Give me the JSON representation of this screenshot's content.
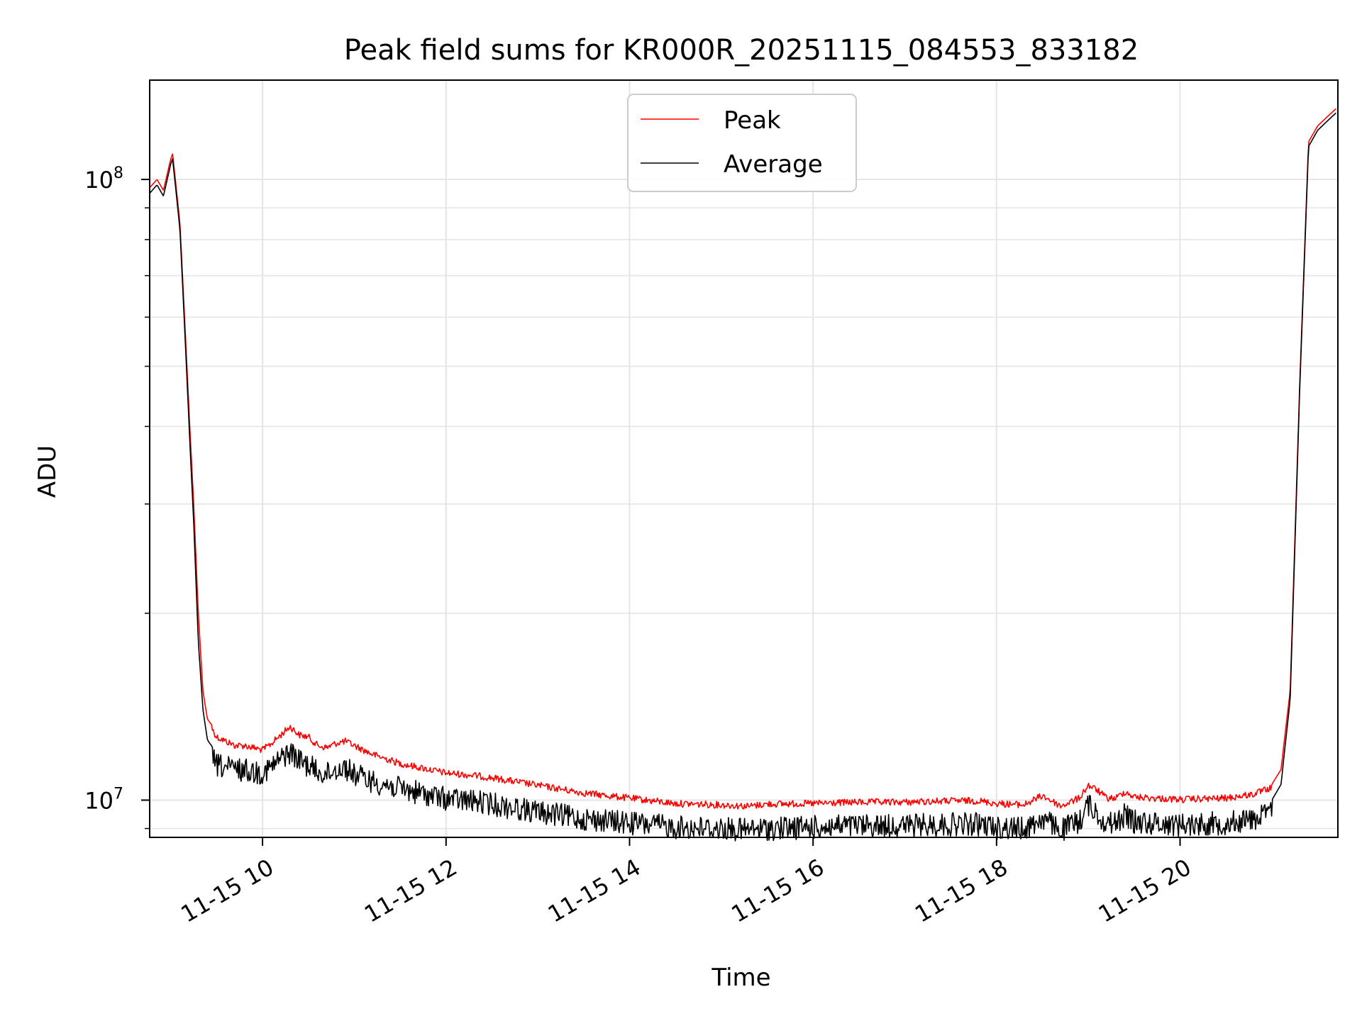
{
  "chart_data": {
    "type": "line",
    "title": "Peak field sums for KR000R_20251115_084553_833182",
    "xlabel": "Time",
    "ylabel": "ADU",
    "x_unit": "hours since 2025-11-15 00:00",
    "xlim": [
      8.77,
      21.72
    ],
    "ylim_log10": [
      6.94,
      8.16
    ],
    "yscale": "log",
    "grid": true,
    "legend_position": "top-center",
    "x_ticks": [
      {
        "value": 10,
        "label": "11-15 10"
      },
      {
        "value": 12,
        "label": "11-15 12"
      },
      {
        "value": 14,
        "label": "11-15 14"
      },
      {
        "value": 16,
        "label": "11-15 16"
      },
      {
        "value": 18,
        "label": "11-15 18"
      },
      {
        "value": 20,
        "label": "11-15 20"
      }
    ],
    "y_ticks": [
      {
        "value": 10000000,
        "base": "10",
        "exp": "7"
      },
      {
        "value": 100000000,
        "base": "10",
        "exp": "8"
      }
    ],
    "series": [
      {
        "name": "Peak",
        "color": "#ff0000",
        "x": [
          8.77,
          8.85,
          8.92,
          9.0,
          9.02,
          9.05,
          9.1,
          9.15,
          9.2,
          9.25,
          9.3,
          9.35,
          9.4,
          9.45,
          9.5,
          9.6,
          9.7,
          9.8,
          9.9,
          10.0,
          10.1,
          10.2,
          10.3,
          10.4,
          10.5,
          10.6,
          10.7,
          10.8,
          10.9,
          11.0,
          11.2,
          11.5,
          12.0,
          12.3,
          12.5,
          13.0,
          13.5,
          14.0,
          14.5,
          15.0,
          15.3,
          15.5,
          16.0,
          16.5,
          17.0,
          17.5,
          17.8,
          18.0,
          18.3,
          18.5,
          18.7,
          18.9,
          19.0,
          19.1,
          19.2,
          19.3,
          19.4,
          19.5,
          19.7,
          20.0,
          20.5,
          20.8,
          21.0,
          21.1,
          21.2,
          21.3,
          21.4,
          21.5,
          21.6,
          21.7
        ],
        "y": [
          97000000,
          100000000,
          96000000,
          108000000,
          110000000,
          100000000,
          85000000,
          60000000,
          42000000,
          30000000,
          20000000,
          15000000,
          13500000,
          13200000,
          12800000,
          12600000,
          12400000,
          12400000,
          12300000,
          12200000,
          12500000,
          12900000,
          13300000,
          12900000,
          12800000,
          12400000,
          12300000,
          12500000,
          12600000,
          12400000,
          12000000,
          11600000,
          11200000,
          11100000,
          11000000,
          10700000,
          10400000,
          10200000,
          10000000,
          9950000,
          9900000,
          9980000,
          10000000,
          10050000,
          10050000,
          10100000,
          10100000,
          10000000,
          9950000,
          10300000,
          9900000,
          10200000,
          10700000,
          10500000,
          10200000,
          10200000,
          10450000,
          10250000,
          10200000,
          10150000,
          10200000,
          10350000,
          10600000,
          11200000,
          15000000,
          45000000,
          115000000,
          122000000,
          126000000,
          130000000
        ]
      },
      {
        "name": "Average",
        "color": "#000000",
        "x": [
          8.77,
          8.85,
          8.92,
          9.0,
          9.02,
          9.05,
          9.1,
          9.15,
          9.2,
          9.25,
          9.3,
          9.35,
          9.4,
          9.45,
          9.5,
          9.6,
          9.7,
          9.8,
          9.9,
          10.0,
          10.1,
          10.2,
          10.3,
          10.4,
          10.5,
          10.6,
          10.7,
          10.8,
          10.9,
          11.0,
          11.2,
          11.5,
          12.0,
          12.3,
          12.5,
          13.0,
          13.5,
          14.0,
          14.5,
          15.0,
          15.3,
          15.5,
          16.0,
          16.5,
          17.0,
          17.5,
          17.8,
          18.0,
          18.3,
          18.5,
          18.7,
          18.9,
          19.0,
          19.1,
          19.2,
          19.3,
          19.4,
          19.5,
          19.7,
          20.0,
          20.5,
          20.8,
          21.0,
          21.1,
          21.2,
          21.3,
          21.4,
          21.5,
          21.6,
          21.7
        ],
        "y": [
          95000000,
          98000000,
          94000000,
          106000000,
          108000000,
          98000000,
          83000000,
          58000000,
          40000000,
          28000000,
          18000000,
          14000000,
          12500000,
          12200000,
          11900000,
          11800000,
          11700000,
          11700000,
          11600000,
          11600000,
          11800000,
          12200000,
          12500000,
          12100000,
          11900000,
          11600000,
          11500000,
          11700000,
          11800000,
          11500000,
          11200000,
          10900000,
          10500000,
          10400000,
          10300000,
          10000000,
          9750000,
          9600000,
          9450000,
          9400000,
          9350000,
          9400000,
          9450000,
          9500000,
          9500000,
          9550000,
          9550000,
          9450000,
          9400000,
          9750000,
          9350000,
          9650000,
          10300000,
          9900000,
          9600000,
          9600000,
          9900000,
          9650000,
          9600000,
          9550000,
          9600000,
          9750000,
          10000000,
          10600000,
          14500000,
          44000000,
          113000000,
          120000000,
          124000000,
          128000000
        ]
      }
    ]
  }
}
